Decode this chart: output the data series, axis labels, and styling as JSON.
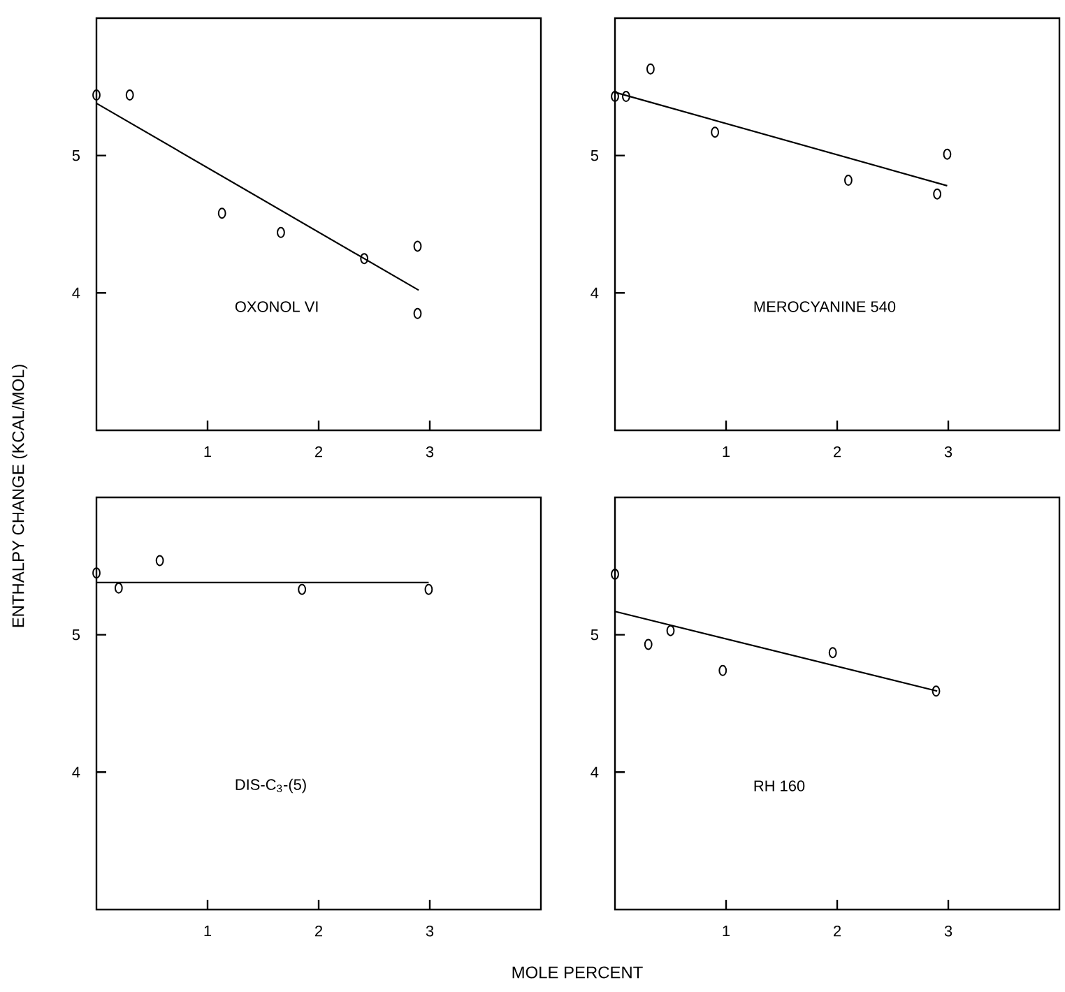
{
  "chart_data": [
    {
      "type": "scatter",
      "ylabel": "ENTHALPY CHANGE (KCAL/MOL)",
      "annotations": [
        "OXONOL VI"
      ],
      "xlim": [
        0,
        4
      ],
      "ylim": [
        3,
        6
      ],
      "xticks": [
        1,
        2,
        3
      ],
      "yticks": [
        4,
        5
      ],
      "series": [
        {
          "marker": "circle",
          "color": "#000000",
          "x": [
            0,
            0.3,
            1.13,
            1.66,
            2.41,
            2.89,
            2.89
          ],
          "values": [
            5.44,
            5.44,
            4.58,
            4.44,
            4.25,
            4.34,
            3.85
          ]
        },
        {
          "type": "line",
          "color": "#000000",
          "x": [
            0,
            2.9
          ],
          "values": [
            5.38,
            4.02
          ]
        }
      ]
    },
    {
      "type": "scatter",
      "annotations": [
        "MEROCYANINE 540"
      ],
      "xlim": [
        0,
        4
      ],
      "ylim": [
        3,
        6
      ],
      "xticks": [
        1,
        2,
        3
      ],
      "yticks": [
        4,
        5
      ],
      "series": [
        {
          "marker": "circle",
          "color": "#000000",
          "x": [
            0,
            0.1,
            0.32,
            0.9,
            2.1,
            2.9,
            2.99
          ],
          "values": [
            5.43,
            5.43,
            5.63,
            5.17,
            4.82,
            4.72,
            5.01
          ]
        },
        {
          "type": "line",
          "color": "#000000",
          "x": [
            0,
            2.99
          ],
          "values": [
            5.46,
            4.78
          ]
        }
      ]
    },
    {
      "type": "scatter",
      "xlabel": "MOLE PERCENT",
      "annotations": [
        "DIS-C$_{3}$-(5)"
      ],
      "xlim": [
        0,
        4
      ],
      "ylim": [
        3,
        6
      ],
      "xticks": [
        1,
        2,
        3
      ],
      "yticks": [
        4,
        5
      ],
      "series": [
        {
          "marker": "circle",
          "color": "#000000",
          "x": [
            0,
            0.2,
            0.57,
            1.85,
            2.99
          ],
          "values": [
            5.45,
            5.34,
            5.54,
            5.33,
            5.33
          ]
        },
        {
          "type": "line",
          "color": "#000000",
          "x": [
            0,
            2.99
          ],
          "values": [
            5.38,
            5.38
          ]
        }
      ]
    },
    {
      "type": "scatter",
      "annotations": [
        "RH 160"
      ],
      "xlim": [
        0,
        4
      ],
      "ylim": [
        3,
        6
      ],
      "xticks": [
        1,
        2,
        3
      ],
      "yticks": [
        4,
        5
      ],
      "series": [
        {
          "marker": "circle",
          "color": "#000000",
          "x": [
            0,
            0.3,
            0.5,
            0.97,
            1.96,
            2.89
          ],
          "values": [
            5.44,
            4.93,
            5.03,
            4.74,
            4.87,
            4.59
          ]
        },
        {
          "type": "line",
          "color": "#000000",
          "x": [
            0,
            2.9
          ],
          "values": [
            5.17,
            4.59
          ]
        }
      ]
    }
  ]
}
